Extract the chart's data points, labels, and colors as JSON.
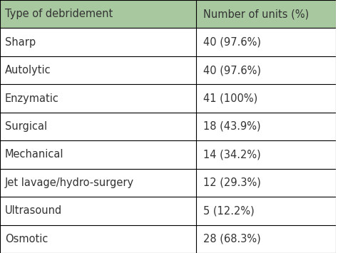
{
  "header": [
    "Type of debridement",
    "Number of units (%)"
  ],
  "rows": [
    [
      "Sharp",
      "40 (97.6%)"
    ],
    [
      "Autolytic",
      "40 (97.6%)"
    ],
    [
      "Enzymatic",
      "41 (100%)"
    ],
    [
      "Surgical",
      "18 (43.9%)"
    ],
    [
      "Mechanical",
      "14 (34.2%)"
    ],
    [
      "Jet lavage/hydro-surgery",
      "12 (29.3%)"
    ],
    [
      "Ultrasound",
      "5 (12.2%)"
    ],
    [
      "Osmotic",
      "28 (68.3%)"
    ]
  ],
  "header_bg": "#a8c8a0",
  "row_bg": "#ffffff",
  "border_color": "#000000",
  "text_color": "#333333",
  "header_text_color": "#333333",
  "col_split": 0.585,
  "fig_width": 4.74,
  "fig_height": 3.55,
  "font_size": 10.5,
  "header_font_size": 10.5,
  "line_width": 0.8
}
